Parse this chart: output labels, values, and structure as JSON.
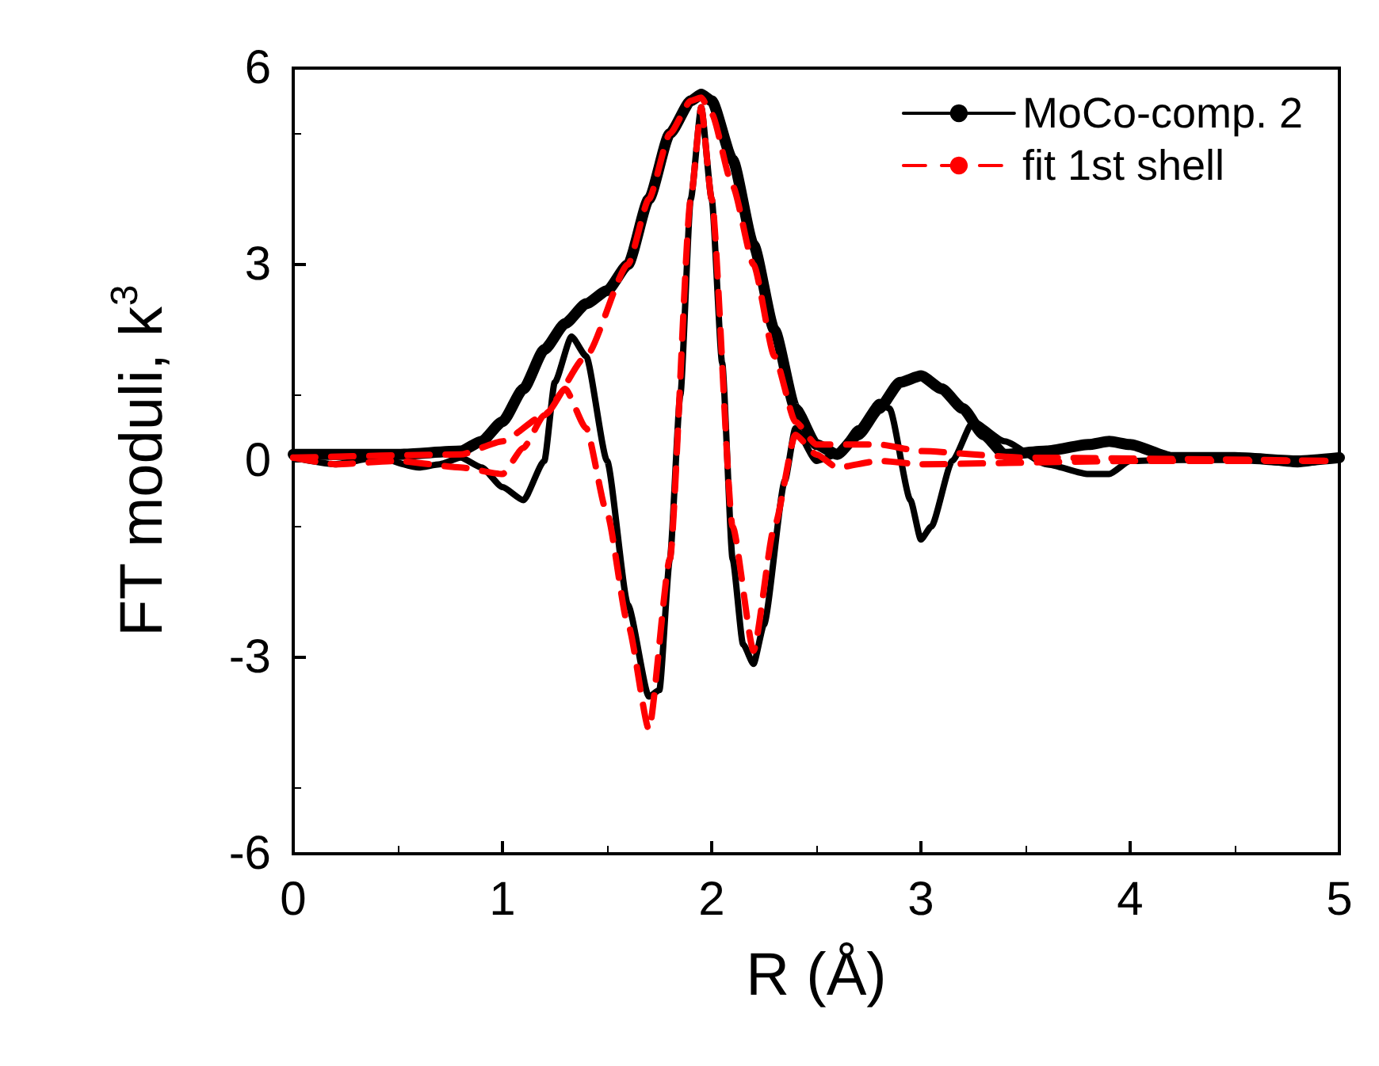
{
  "chart_data": {
    "type": "line",
    "xlabel": "R (Å)",
    "ylabel": "FT moduli, k$^{3}$",
    "xlim": [
      0,
      5
    ],
    "ylim": [
      -6,
      6
    ],
    "xticks": [
      0,
      1,
      2,
      3,
      4,
      5
    ],
    "yticks": [
      -6,
      -3,
      0,
      3,
      6
    ],
    "grid": false,
    "legend": "top right",
    "marker": "none",
    "series": [
      {
        "name": "MoCo-comp. 2",
        "color": "#000000",
        "line_style": "solid",
        "x": [
          0,
          0.5,
          0.8,
          0.9,
          1.0,
          1.1,
          1.2,
          1.3,
          1.4,
          1.5,
          1.6,
          1.7,
          1.8,
          1.9,
          1.95,
          2.0,
          2.1,
          2.2,
          2.3,
          2.4,
          2.5,
          2.6,
          2.7,
          2.8,
          2.9,
          3.0,
          3.1,
          3.2,
          3.3,
          3.4,
          3.6,
          3.8,
          3.9,
          4.0,
          4.2,
          4.5,
          4.8,
          5.0
        ],
        "values": [
          0.1,
          0.1,
          0.15,
          0.3,
          0.6,
          1.1,
          1.7,
          2.1,
          2.4,
          2.6,
          3.0,
          4.0,
          5.0,
          5.5,
          5.6,
          5.5,
          4.6,
          3.3,
          2.0,
          0.8,
          0.25,
          0.1,
          0.4,
          0.8,
          1.2,
          1.3,
          1.1,
          0.8,
          0.4,
          0.1,
          0.15,
          0.25,
          0.3,
          0.25,
          0.05,
          0.05,
          0,
          0.05
        ]
      },
      {
        "color": "#000000",
        "line_style": "solid",
        "x": [
          0,
          0.2,
          0.4,
          0.6,
          0.7,
          0.8,
          0.9,
          1.0,
          1.1,
          1.2,
          1.25,
          1.33,
          1.4,
          1.5,
          1.6,
          1.7,
          1.75,
          1.8,
          1.85,
          1.9,
          1.95,
          2.0,
          2.05,
          2.1,
          2.15,
          2.2,
          2.25,
          2.35,
          2.4,
          2.5,
          2.6,
          2.7,
          2.8,
          2.85,
          2.95,
          3.0,
          3.05,
          3.15,
          3.25,
          3.4,
          3.6,
          3.8,
          3.9,
          4.0,
          4.5,
          4.8,
          5.0
        ],
        "values": [
          0.05,
          -0.05,
          0.05,
          -0.1,
          -0.05,
          0.05,
          -0.1,
          -0.4,
          -0.6,
          0.0,
          1.2,
          1.9,
          1.6,
          0.0,
          -2.2,
          -3.6,
          -3.5,
          -1.5,
          1.0,
          4.0,
          5.4,
          4.0,
          1.5,
          -1.5,
          -2.8,
          -3.1,
          -2.5,
          -0.3,
          0.5,
          0.0,
          0.1,
          0.5,
          0.9,
          0.8,
          -0.6,
          -1.2,
          -1.0,
          0.0,
          0.6,
          0.3,
          -0.05,
          -0.2,
          -0.2,
          0.0,
          0.05,
          -0.05,
          0.05
        ]
      },
      {
        "name": "fit 1st shell",
        "color": "#ff0000",
        "line_style": "dashed",
        "x": [
          0,
          0.8,
          1.0,
          1.2,
          1.4,
          1.6,
          1.7,
          1.8,
          1.9,
          1.95,
          2.0,
          2.1,
          2.2,
          2.3,
          2.4,
          2.5,
          2.8,
          3.0,
          3.5,
          5.0
        ],
        "values": [
          0.05,
          0.1,
          0.3,
          0.7,
          1.6,
          3.0,
          4.0,
          5.0,
          5.5,
          5.55,
          5.3,
          4.2,
          3.0,
          1.6,
          0.6,
          0.25,
          0.25,
          0.15,
          0.05,
          0.0
        ]
      },
      {
        "color": "#ff0000",
        "line_style": "dashed",
        "x": [
          0,
          0.2,
          0.5,
          0.8,
          1.0,
          1.1,
          1.2,
          1.3,
          1.4,
          1.5,
          1.6,
          1.7,
          1.8,
          1.9,
          1.95,
          2.0,
          2.1,
          2.2,
          2.3,
          2.4,
          2.5,
          2.6,
          2.8,
          3.0,
          4.0,
          5.0
        ],
        "values": [
          0.05,
          -0.05,
          0.0,
          -0.1,
          -0.2,
          0.2,
          0.7,
          1.1,
          0.5,
          -0.8,
          -2.5,
          -4.1,
          -1.5,
          4.0,
          5.4,
          4.0,
          -1.0,
          -2.9,
          -1.0,
          0.4,
          0.1,
          -0.1,
          0.0,
          -0.05,
          0,
          0
        ]
      }
    ]
  }
}
